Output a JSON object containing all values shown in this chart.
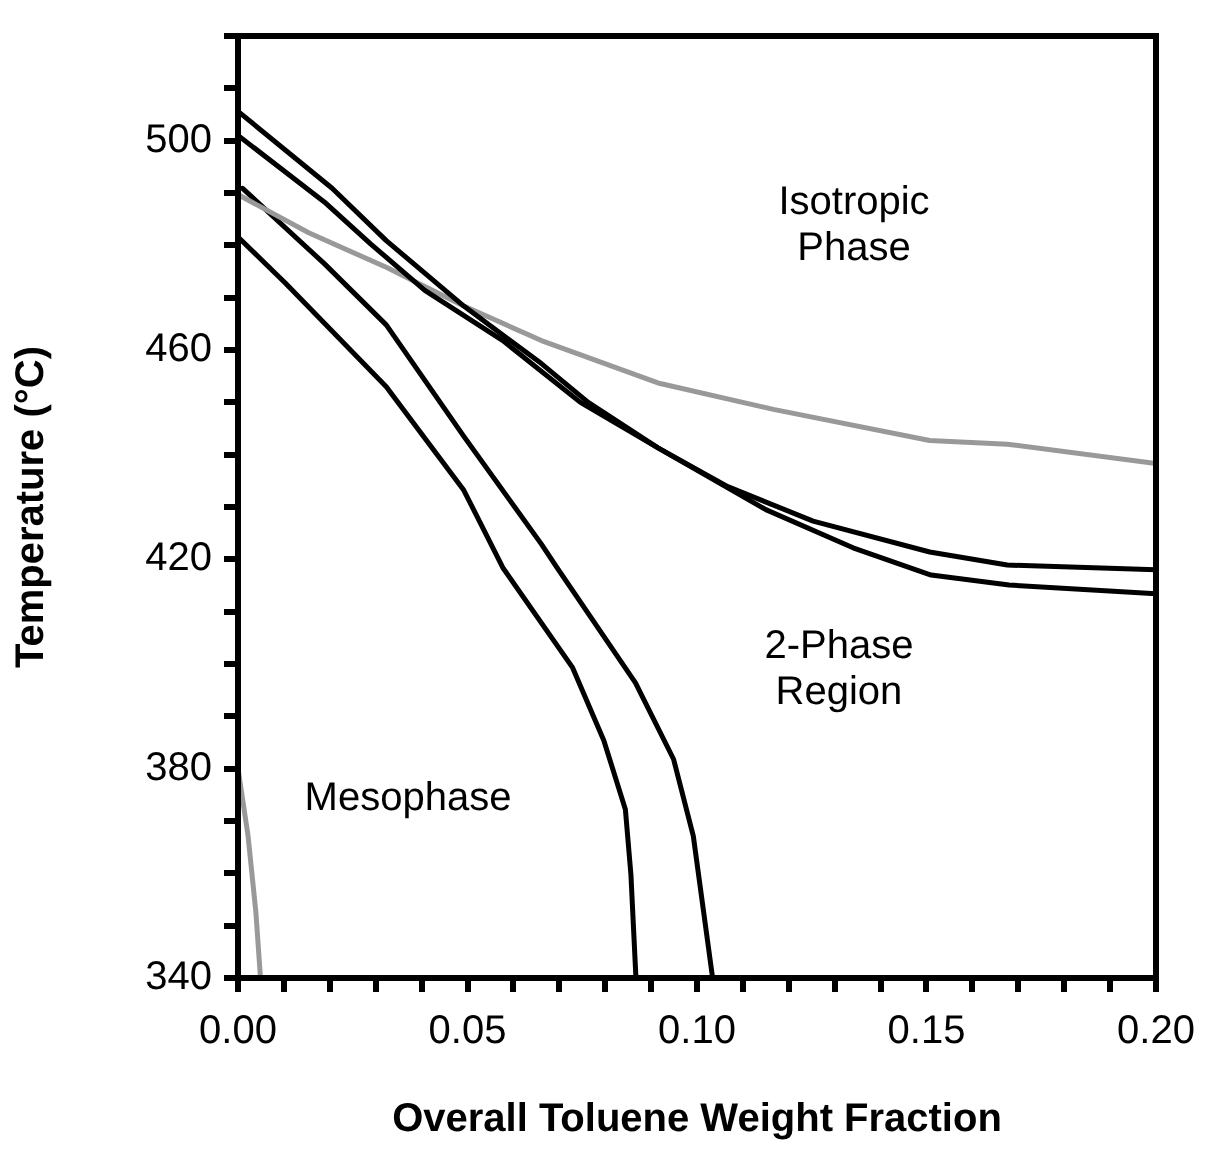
{
  "chart_data": {
    "type": "line",
    "xlabel": "Overall Toluene Weight Fraction",
    "ylabel": "Temperature (°C)",
    "xlim": [
      0,
      0.2
    ],
    "ylim": [
      340,
      520
    ],
    "xticks": [
      {
        "value": 0,
        "label": "0.00"
      },
      {
        "value": 0.01,
        "label": null
      },
      {
        "value": 0.02,
        "label": null
      },
      {
        "value": 0.03,
        "label": null
      },
      {
        "value": 0.04,
        "label": null
      },
      {
        "value": 0.05,
        "label": "0.05"
      },
      {
        "value": 0.06,
        "label": null
      },
      {
        "value": 0.07,
        "label": null
      },
      {
        "value": 0.08,
        "label": null
      },
      {
        "value": 0.09,
        "label": null
      },
      {
        "value": 0.1,
        "label": "0.10"
      },
      {
        "value": 0.11,
        "label": null
      },
      {
        "value": 0.12,
        "label": null
      },
      {
        "value": 0.13,
        "label": null
      },
      {
        "value": 0.14,
        "label": null
      },
      {
        "value": 0.15,
        "label": "0.15"
      },
      {
        "value": 0.16,
        "label": null
      },
      {
        "value": 0.17,
        "label": null
      },
      {
        "value": 0.18,
        "label": null
      },
      {
        "value": 0.19,
        "label": null
      },
      {
        "value": 0.2,
        "label": "0.20"
      }
    ],
    "yticks": [
      340,
      {
        "value": 350,
        "label": null
      },
      {
        "value": 360,
        "label": null
      },
      {
        "value": 370,
        "label": null
      },
      380,
      {
        "value": 390,
        "label": null
      },
      {
        "value": 400,
        "label": null
      },
      {
        "value": 410,
        "label": null
      },
      420,
      {
        "value": 430,
        "label": null
      },
      {
        "value": 440,
        "label": null
      },
      {
        "value": 450,
        "label": null
      },
      460,
      {
        "value": 470,
        "label": null
      },
      {
        "value": 480,
        "label": null
      },
      {
        "value": 490,
        "label": null
      },
      500,
      {
        "value": 510,
        "label": null
      },
      {
        "value": 520,
        "label": null
      }
    ],
    "grid": false,
    "legend": false,
    "marker": "none",
    "line_style": "solid",
    "annotations": [
      "Isotropic Phase",
      "2-Phase Region",
      "Mesophase"
    ],
    "series": [
      {
        "color": "#000000",
        "x": [
          0,
          0.0205,
          0.0323,
          0.0492,
          0.0661,
          0.0763,
          0.0915,
          0.115,
          0.134,
          0.151,
          0.168,
          0.2
        ],
        "values": [
          505.6,
          490.9,
          480.9,
          468.4,
          457.4,
          450,
          441.3,
          429.5,
          422.2,
          417,
          415.1,
          413.4
        ]
      },
      {
        "color": "#000000",
        "x": [
          0,
          0.0188,
          0.029,
          0.0407,
          0.0577,
          0.0746,
          0.0915,
          0.1067,
          0.1253,
          0.1507,
          0.1676,
          0.2
        ],
        "values": [
          501,
          488.3,
          480.2,
          471.4,
          461.8,
          450,
          441.3,
          433.9,
          427.3,
          421.4,
          418.9,
          418
        ]
      },
      {
        "color": "#999999",
        "x": [
          0,
          0.0154,
          0.0323,
          0.0492,
          0.0661,
          0.0915,
          0.1169,
          0.1507,
          0.1676,
          0.2
        ],
        "values": [
          489.7,
          482.4,
          475.8,
          468.4,
          461.8,
          453.7,
          448.6,
          442.7,
          442,
          438.3
        ]
      },
      {
        "color": "#000000",
        "x": [
          0.001,
          0.0188,
          0.0323,
          0.0492,
          0.0661,
          0.0695,
          0.0866,
          0.0949,
          0.0992,
          0.1034
        ],
        "values": [
          490.9,
          476.5,
          464.8,
          443.5,
          422.9,
          418.4,
          396.4,
          381.8,
          367.1,
          340
        ]
      },
      {
        "color": "#000000",
        "x": [
          0,
          0.0103,
          0.0323,
          0.0492,
          0.0577,
          0.0729,
          0.0797,
          0.0844,
          0.0856,
          0.0867
        ],
        "values": [
          481.6,
          472.8,
          453,
          433.2,
          418.4,
          399.3,
          385.4,
          372.2,
          359.8,
          340
        ]
      },
      {
        "color": "#999999",
        "x": [
          0,
          0.0022,
          0.0039,
          0.0049
        ],
        "values": [
          380,
          367.1,
          352.5,
          340
        ]
      }
    ]
  }
}
